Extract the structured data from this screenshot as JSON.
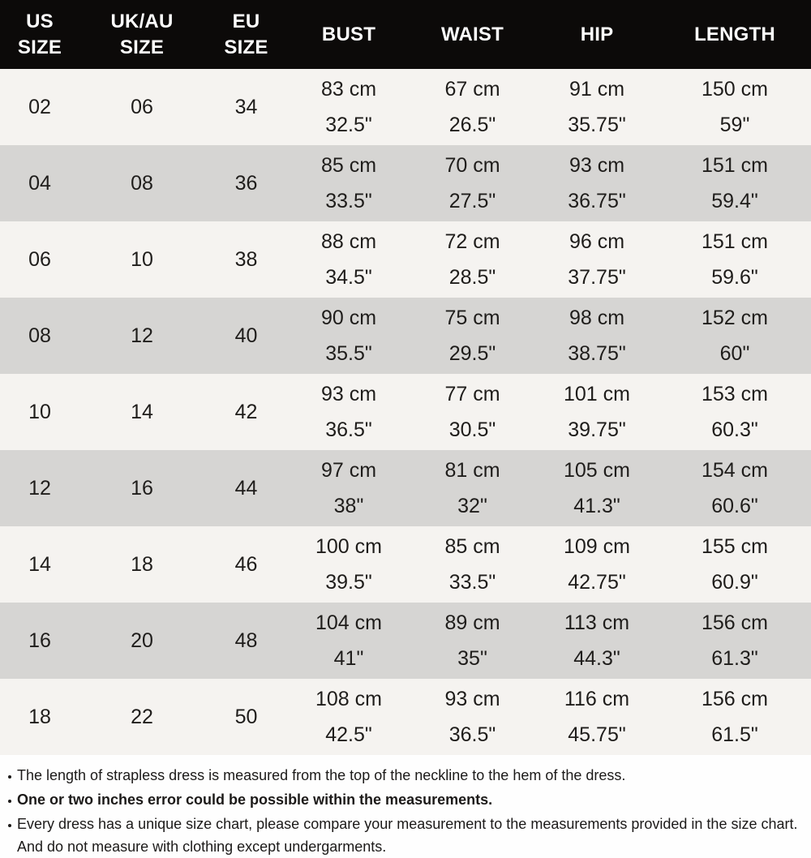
{
  "table": {
    "columns": [
      {
        "id": "us-size",
        "label_lines": [
          "US",
          "SIZE"
        ]
      },
      {
        "id": "uk-au-size",
        "label_lines": [
          "UK/AU",
          "SIZE"
        ]
      },
      {
        "id": "eu-size",
        "label_lines": [
          "EU",
          "SIZE"
        ]
      },
      {
        "id": "bust",
        "label_lines": [
          "BUST"
        ]
      },
      {
        "id": "waist",
        "label_lines": [
          "WAIST"
        ]
      },
      {
        "id": "hip",
        "label_lines": [
          "HIP"
        ]
      },
      {
        "id": "length",
        "label_lines": [
          "LENGTH"
        ]
      }
    ],
    "rows": [
      [
        "02",
        "06",
        "34",
        [
          "83 cm",
          "32.5\""
        ],
        [
          "67 cm",
          "26.5\""
        ],
        [
          "91 cm",
          "35.75\""
        ],
        [
          "150 cm",
          "59\""
        ]
      ],
      [
        "04",
        "08",
        "36",
        [
          "85 cm",
          "33.5\""
        ],
        [
          "70 cm",
          "27.5\""
        ],
        [
          "93 cm",
          "36.75\""
        ],
        [
          "151 cm",
          "59.4\""
        ]
      ],
      [
        "06",
        "10",
        "38",
        [
          "88 cm",
          "34.5\""
        ],
        [
          "72 cm",
          "28.5\""
        ],
        [
          "96 cm",
          "37.75\""
        ],
        [
          "151 cm",
          "59.6\""
        ]
      ],
      [
        "08",
        "12",
        "40",
        [
          "90 cm",
          "35.5\""
        ],
        [
          "75 cm",
          "29.5\""
        ],
        [
          "98 cm",
          "38.75\""
        ],
        [
          "152 cm",
          "60\""
        ]
      ],
      [
        "10",
        "14",
        "42",
        [
          "93 cm",
          "36.5\""
        ],
        [
          "77 cm",
          "30.5\""
        ],
        [
          "101 cm",
          "39.75\""
        ],
        [
          "153 cm",
          "60.3\""
        ]
      ],
      [
        "12",
        "16",
        "44",
        [
          "97 cm",
          "38\""
        ],
        [
          "81 cm",
          "32\""
        ],
        [
          "105 cm",
          "41.3\""
        ],
        [
          "154 cm",
          "60.6\""
        ]
      ],
      [
        "14",
        "18",
        "46",
        [
          "100 cm",
          "39.5\""
        ],
        [
          "85 cm",
          "33.5\""
        ],
        [
          "109 cm",
          "42.75\""
        ],
        [
          "155 cm",
          "60.9\""
        ]
      ],
      [
        "16",
        "20",
        "48",
        [
          "104 cm",
          "41\""
        ],
        [
          "89 cm",
          "35\""
        ],
        [
          "113 cm",
          "44.3\""
        ],
        [
          "156 cm",
          "61.3\""
        ]
      ],
      [
        "18",
        "22",
        "50",
        [
          "108 cm",
          "42.5\""
        ],
        [
          "93 cm",
          "36.5\""
        ],
        [
          "116 cm",
          "45.75\""
        ],
        [
          "156 cm",
          "61.5\""
        ]
      ]
    ]
  },
  "notes": {
    "items": [
      {
        "text": "The length of strapless dress is measured from the top of the neckline to the hem of the dress.",
        "bold": false
      },
      {
        "text": "One or two inches error could be possible within the measurements.",
        "bold": true
      },
      {
        "text": "Every dress has a unique size chart, please compare your measurement to the measurements provided in the size chart. And do not measure with clothing except undergarments.",
        "bold": false
      }
    ]
  },
  "colors": {
    "header_bg": "#0c0a09",
    "header_text": "#ffffff",
    "row_light": "#f5f3f0",
    "row_dark": "#d6d5d3",
    "cell_text": "#1f1d1b",
    "note_text": "#1c1a19",
    "page_bg": "#fefefe"
  }
}
